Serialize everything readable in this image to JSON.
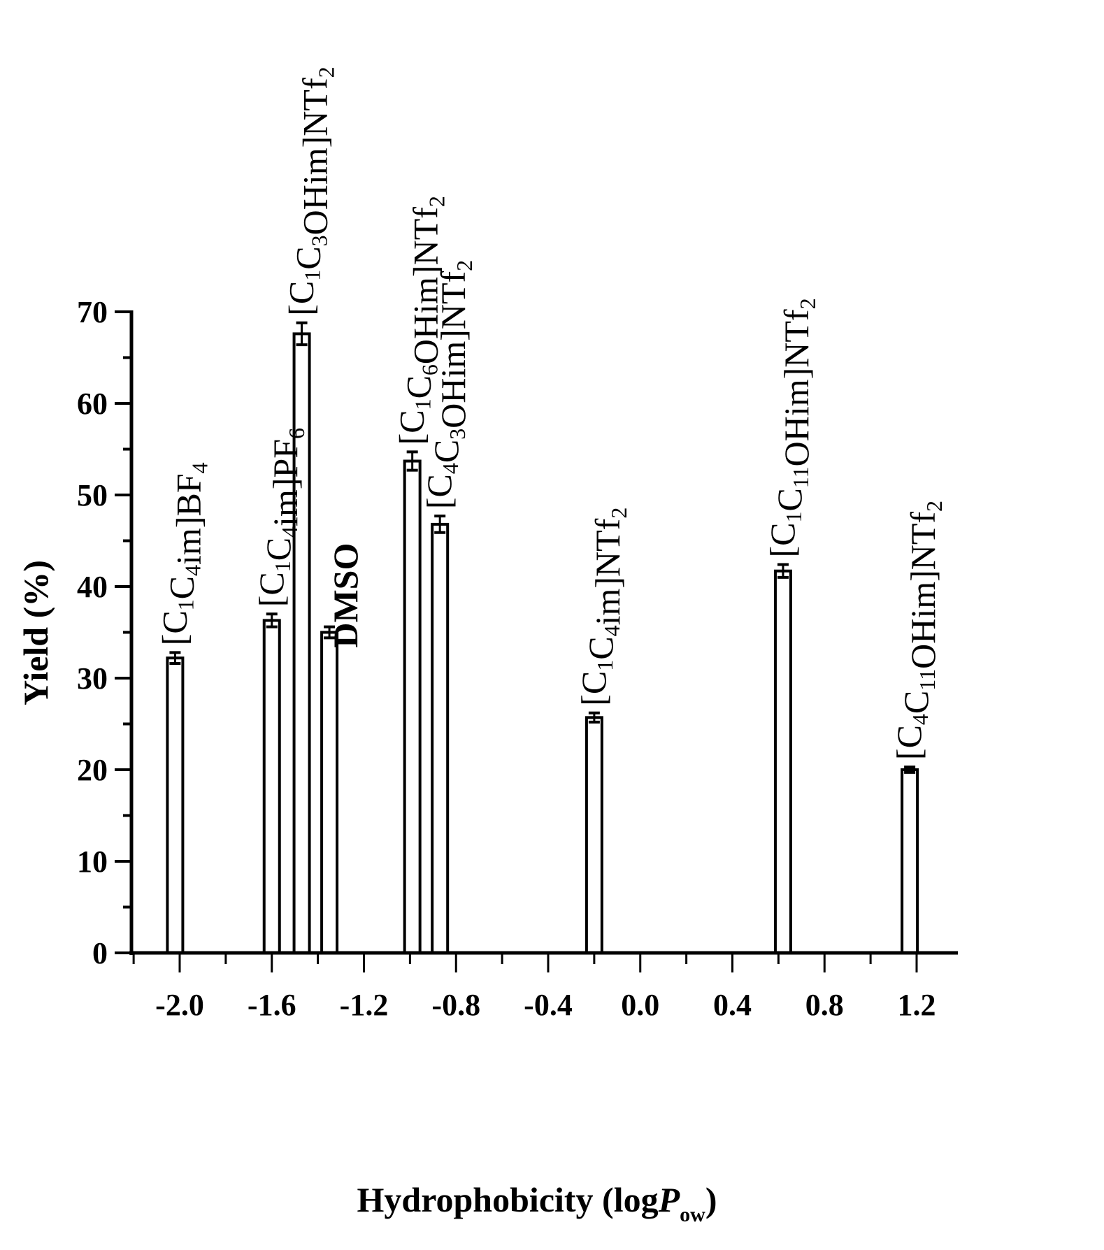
{
  "chart_data": {
    "type": "bar",
    "title": "",
    "xlabel": "Hydrophobicity (logP_ow)",
    "xlabel_parts": {
      "main": "Hydrophobicity (log",
      "italic": "P",
      "sub": "ow",
      "close": ")"
    },
    "ylabel": "Yield (%)",
    "xlim": [
      -2.2,
      1.35
    ],
    "ylim": [
      0,
      70
    ],
    "x_ticks": [
      -2.0,
      -1.6,
      -1.2,
      -0.8,
      -0.4,
      0.0,
      0.4,
      0.8,
      1.2
    ],
    "x_tick_labels": [
      "-2.0",
      "-1.6",
      "-1.2",
      "-0.8",
      "-0.4",
      "0.0",
      "0.4",
      "0.8",
      "1.2"
    ],
    "y_ticks": [
      0,
      10,
      20,
      30,
      40,
      50,
      60,
      70
    ],
    "y_tick_labels": [
      "0",
      "10",
      "20",
      "30",
      "40",
      "50",
      "60",
      "70"
    ],
    "grid": false,
    "legend": null,
    "bar_fill": "#ffffff",
    "bar_edge": "#000000",
    "error_bars": true,
    "series": [
      {
        "name": "Yield",
        "points": [
          {
            "label": "[C1C4im]BF4",
            "x": -2.02,
            "y": 32.2,
            "err": 0.6
          },
          {
            "label": "[C1C4im]PF6",
            "x": -1.6,
            "y": 36.3,
            "err": 0.7
          },
          {
            "label": "[C1C3OHim]NTf2",
            "x": -1.47,
            "y": 67.6,
            "err": 1.2
          },
          {
            "label": "DMSO",
            "x": -1.35,
            "y": 35.0,
            "err": 0.6
          },
          {
            "label": "[C1C6OHim]NTf2",
            "x": -0.99,
            "y": 53.7,
            "err": 1.0
          },
          {
            "label": "[C4C3OHim]NTf2",
            "x": -0.87,
            "y": 46.8,
            "err": 0.9
          },
          {
            "label": "[C1C4im]NTf2",
            "x": -0.2,
            "y": 25.7,
            "err": 0.5
          },
          {
            "label": "[C1C11OHim]NTf2",
            "x": 0.62,
            "y": 41.7,
            "err": 0.7
          },
          {
            "label": "[C4C11OHim]NTf2",
            "x": 1.17,
            "y": 20.0,
            "err": 0.3
          }
        ]
      }
    ],
    "annotations": [
      {
        "text": "[C1C4im]BF4",
        "parts": [
          [
            "[C",
            "n"
          ],
          [
            "1",
            "sub"
          ],
          [
            "C",
            "n"
          ],
          [
            "4",
            "sub"
          ],
          [
            "im]BF",
            "n"
          ],
          [
            "4",
            "sub"
          ]
        ]
      },
      {
        "text": "[C1C4im]PF6",
        "parts": [
          [
            "[C",
            "n"
          ],
          [
            "1",
            "sub"
          ],
          [
            "C",
            "n"
          ],
          [
            "4",
            "sub"
          ],
          [
            "im]PF",
            "n"
          ],
          [
            "6",
            "sub"
          ]
        ]
      },
      {
        "text": "[C1C3OHim]NTf2",
        "parts": [
          [
            "[C",
            "n"
          ],
          [
            "1",
            "sub"
          ],
          [
            "C",
            "n"
          ],
          [
            "3",
            "sub"
          ],
          [
            "OHim]NTf",
            "n"
          ],
          [
            "2",
            "sub"
          ]
        ]
      },
      {
        "text": "DMSO",
        "parts": [
          [
            "DMSO",
            "n"
          ]
        ]
      },
      {
        "text": "[C1C6OHim]NTf2",
        "parts": [
          [
            "[C",
            "n"
          ],
          [
            "1",
            "sub"
          ],
          [
            "C",
            "n"
          ],
          [
            "6",
            "sub"
          ],
          [
            "OHim]NTf",
            "n"
          ],
          [
            "2",
            "sub"
          ]
        ]
      },
      {
        "text": "[C4C3OHim]NTf2",
        "parts": [
          [
            "[C",
            "n"
          ],
          [
            "4",
            "sub"
          ],
          [
            "C",
            "n"
          ],
          [
            "3",
            "sub"
          ],
          [
            "OHim]NTf",
            "n"
          ],
          [
            "2",
            "sub"
          ]
        ]
      },
      {
        "text": "[C1C4im]NTf2",
        "parts": [
          [
            "[C",
            "n"
          ],
          [
            "1",
            "sub"
          ],
          [
            "C",
            "n"
          ],
          [
            "4",
            "sub"
          ],
          [
            "im]NTf",
            "n"
          ],
          [
            "2",
            "sub"
          ]
        ]
      },
      {
        "text": "[C1C11OHim]NTf2",
        "parts": [
          [
            "[C",
            "n"
          ],
          [
            "1",
            "sub"
          ],
          [
            "C",
            "n"
          ],
          [
            "11",
            "sub"
          ],
          [
            "OHim]NTf",
            "n"
          ],
          [
            "2",
            "sub"
          ]
        ]
      },
      {
        "text": "[C4C11OHim]NTf2",
        "parts": [
          [
            "[C",
            "n"
          ],
          [
            "4",
            "sub"
          ],
          [
            "C",
            "n"
          ],
          [
            "11",
            "sub"
          ],
          [
            "OHim]NTf",
            "n"
          ],
          [
            "2",
            "sub"
          ]
        ]
      }
    ]
  }
}
